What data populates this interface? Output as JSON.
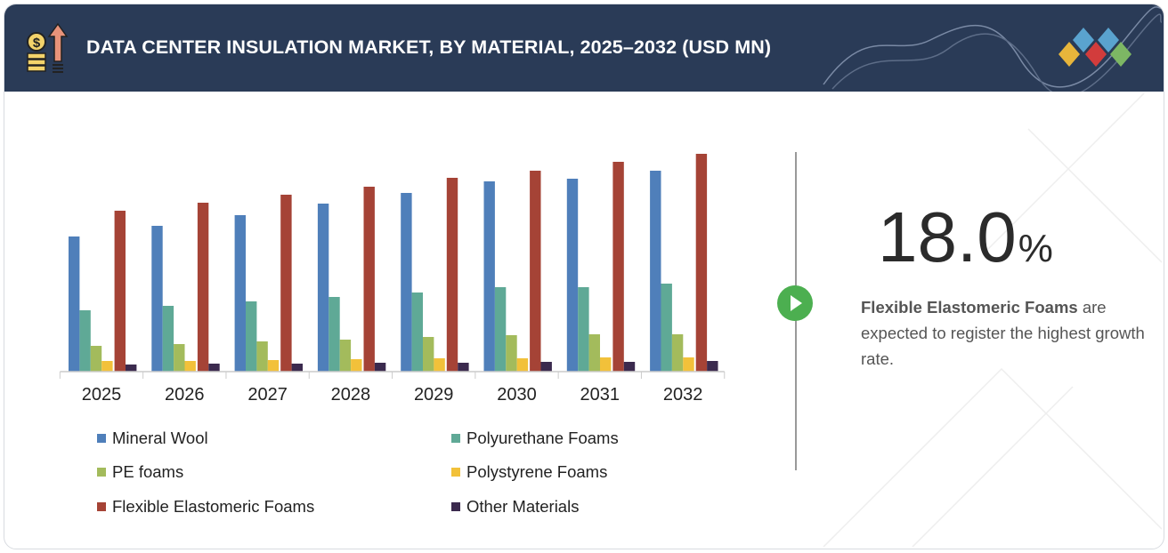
{
  "header": {
    "title": "DATA CENTER INSULATION MARKET, BY MATERIAL, 2025–2032 (USD MN)",
    "icon": "money-growth-icon",
    "logo": "diamond-logo",
    "background_color": "#2a3b57"
  },
  "chart_data": {
    "type": "bar",
    "title": "DATA CENTER INSULATION MARKET, BY MATERIAL, 2025–2032 (USD MN)",
    "categories": [
      "2025",
      "2026",
      "2027",
      "2028",
      "2029",
      "2030",
      "2031",
      "2032"
    ],
    "series": [
      {
        "name": "Mineral Wool",
        "color": "#4f7fba",
        "values": [
          152,
          164,
          176,
          189,
          201,
          214,
          217,
          226
        ]
      },
      {
        "name": "Polyurethane Foams",
        "color": "#5fa996",
        "values": [
          69,
          74,
          79,
          84,
          89,
          95,
          95,
          99
        ]
      },
      {
        "name": "PE foams",
        "color": "#a3bb5c",
        "values": [
          29,
          31,
          34,
          36,
          39,
          41,
          42,
          42
        ]
      },
      {
        "name": "Polystyrene Foams",
        "color": "#f2c13a",
        "values": [
          12,
          12,
          13,
          14,
          15,
          15,
          16,
          16
        ]
      },
      {
        "name": "Flexible Elastomeric Foams",
        "color": "#a54336",
        "values": [
          181,
          190,
          199,
          208,
          218,
          226,
          236,
          245
        ]
      },
      {
        "name": "Other Materials",
        "color": "#3b2a4e",
        "values": [
          8,
          9,
          9,
          10,
          10,
          11,
          11,
          12
        ]
      }
    ],
    "xlabel": "",
    "ylabel": "",
    "ylim": [
      0,
      260
    ],
    "y_axis_shown": false,
    "grid": false,
    "legend": "bottom"
  },
  "highlight": {
    "value": "18.0",
    "unit": "%",
    "bold_text": "Flexible Elastomeric Foams",
    "text": " are expected to register the highest growth rate.",
    "play_icon": "play-icon",
    "play_color": "#4caf50"
  }
}
